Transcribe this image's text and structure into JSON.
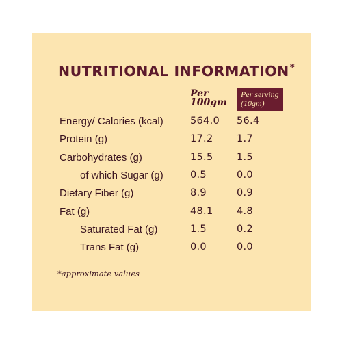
{
  "title": "NUTRITIONAL INFORMATION",
  "title_marker": "*",
  "columns": {
    "per_100": "Per\n100gm",
    "per_serving": "Per serving\n(10gm)"
  },
  "rows": [
    {
      "label": "Energy/ Calories (kcal)",
      "per_100": "564.0",
      "per_serving": "56.4",
      "indent": false
    },
    {
      "label": "Protein (g)",
      "per_100": "17.2",
      "per_serving": "1.7",
      "indent": false
    },
    {
      "label": "Carbohydrates (g)",
      "per_100": "15.5",
      "per_serving": "1.5",
      "indent": false
    },
    {
      "label": "of which Sugar (g)",
      "per_100": "0.5",
      "per_serving": "0.0",
      "indent": true
    },
    {
      "label": "Dietary Fiber (g)",
      "per_100": "8.9",
      "per_serving": "0.9",
      "indent": false
    },
    {
      "label": "Fat (g)",
      "per_100": "48.1",
      "per_serving": "4.8",
      "indent": false
    },
    {
      "label": "Saturated Fat (g)",
      "per_100": "1.5",
      "per_serving": "0.2",
      "indent": true
    },
    {
      "label": "Trans Fat (g)",
      "per_100": "0.0",
      "per_serving": "0.0",
      "indent": true
    }
  ],
  "footnote": "*approximate values",
  "colors": {
    "panel_background": "#fce5b1",
    "heading": "#5c1a2c",
    "serving_badge": "#6a1d2f",
    "text": "#3a1420"
  }
}
